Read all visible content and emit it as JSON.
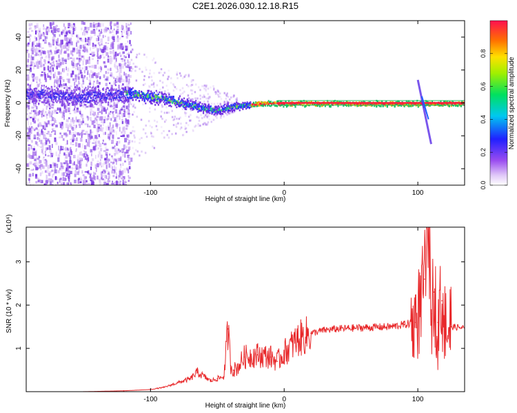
{
  "title": "C2E1.2026.030.12.18.R15",
  "chart_data": [
    {
      "type": "heatmap",
      "xlabel": "Height of straight line (km)",
      "ylabel": "Frequency (Hz)",
      "xlim": [
        -193,
        135
      ],
      "ylim": [
        -50,
        50
      ],
      "xticks": [
        -100,
        0,
        100
      ],
      "yticks": [
        -40,
        -20,
        0,
        20,
        40
      ],
      "colorbar": {
        "label": "Normalized spectral amplitude",
        "range": [
          0,
          1
        ],
        "ticks": [
          "0.0",
          "0.2",
          "0.4",
          "0.6",
          "0.8"
        ],
        "tick_values": [
          0.0,
          0.2,
          0.4,
          0.6,
          0.8
        ]
      },
      "noise_region_x": [
        -193,
        -115
      ],
      "ridge": {
        "x": [
          -193,
          -175,
          -150,
          -130,
          -115,
          -100,
          -90,
          -80,
          -70,
          -60,
          -50,
          -40,
          -30,
          -20,
          -10,
          0,
          20,
          50,
          80,
          100,
          105,
          110,
          120,
          135
        ],
        "y_hz": [
          6,
          5,
          4,
          5,
          6,
          4,
          3,
          1,
          -1,
          -3,
          -4,
          -2,
          -1,
          0,
          0,
          0,
          0,
          0,
          0,
          0,
          0,
          0,
          0,
          0
        ]
      },
      "spike": {
        "x_from": 100,
        "x_to": 110,
        "y_from_hz": 14,
        "y_to_hz": -25
      },
      "grid": false
    },
    {
      "type": "line",
      "xlabel": "Height of straight line (km)",
      "ylabel": "SNR (10 * v/v)",
      "yscale_label": "(x10⁴)",
      "xlim": [
        -193,
        135
      ],
      "ylim": [
        0,
        3.8
      ],
      "xticks": [
        -100,
        0,
        100
      ],
      "yticks": [
        1,
        2,
        3
      ],
      "series": [
        {
          "color": "#e8282a",
          "x": [
            -193,
            -150,
            -120,
            -100,
            -90,
            -80,
            -70,
            -65,
            -60,
            -55,
            -50,
            -45,
            -42,
            -40,
            -38,
            -35,
            -30,
            -20,
            -10,
            -5,
            0,
            10,
            20,
            30,
            40,
            60,
            80,
            90,
            98,
            102,
            105,
            108,
            110,
            112,
            115,
            118,
            120,
            125,
            135
          ],
          "y": [
            0.0,
            0.0,
            0.02,
            0.05,
            0.1,
            0.2,
            0.3,
            0.45,
            0.35,
            0.25,
            0.3,
            0.35,
            1.45,
            0.6,
            0.5,
            0.55,
            0.8,
            0.85,
            0.8,
            0.7,
            0.9,
            1.2,
            1.35,
            1.42,
            1.45,
            1.48,
            1.5,
            1.55,
            1.6,
            2.0,
            2.6,
            3.8,
            1.8,
            2.3,
            1.6,
            2.1,
            1.5,
            1.5,
            1.47
          ]
        }
      ],
      "grid": false
    }
  ]
}
